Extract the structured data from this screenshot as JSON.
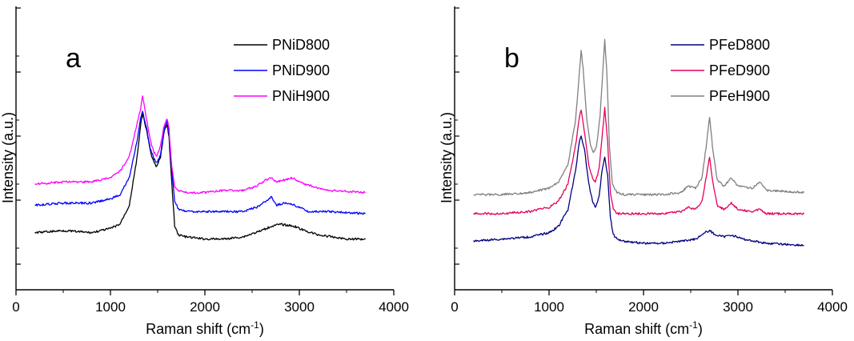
{
  "chart_data": [
    {
      "type": "line",
      "panel_label": "a",
      "xlabel": "Raman shift (cm",
      "xlabel_sup": "-1",
      "xlabel_close": ")",
      "ylabel": "Intensity (a.u.)",
      "xlim": [
        0,
        4000
      ],
      "xticks": [
        0,
        1000,
        2000,
        3000,
        4000
      ],
      "y_ticks_labeled": false,
      "grid": false,
      "legend_position": "top-right",
      "series": [
        {
          "name": "PNiD800",
          "color": "#000000",
          "points": [
            [
              200,
              0.27
            ],
            [
              500,
              0.28
            ],
            [
              800,
              0.27
            ],
            [
              1000,
              0.29
            ],
            [
              1100,
              0.31
            ],
            [
              1200,
              0.4
            ],
            [
              1280,
              0.62
            ],
            [
              1320,
              0.78
            ],
            [
              1340,
              0.83
            ],
            [
              1380,
              0.76
            ],
            [
              1420,
              0.66
            ],
            [
              1460,
              0.6
            ],
            [
              1490,
              0.58
            ],
            [
              1530,
              0.63
            ],
            [
              1570,
              0.75
            ],
            [
              1600,
              0.78
            ],
            [
              1620,
              0.72
            ],
            [
              1650,
              0.5
            ],
            [
              1680,
              0.3
            ],
            [
              1720,
              0.26
            ],
            [
              1800,
              0.25
            ],
            [
              2000,
              0.24
            ],
            [
              2200,
              0.24
            ],
            [
              2400,
              0.25
            ],
            [
              2600,
              0.28
            ],
            [
              2700,
              0.3
            ],
            [
              2800,
              0.31
            ],
            [
              2950,
              0.3
            ],
            [
              3050,
              0.28
            ],
            [
              3200,
              0.26
            ],
            [
              3500,
              0.24
            ],
            [
              3700,
              0.24
            ]
          ]
        },
        {
          "name": "PNiD900",
          "color": "#0000ff",
          "points": [
            [
              200,
              0.4
            ],
            [
              500,
              0.41
            ],
            [
              800,
              0.41
            ],
            [
              1000,
              0.43
            ],
            [
              1100,
              0.45
            ],
            [
              1200,
              0.53
            ],
            [
              1280,
              0.7
            ],
            [
              1320,
              0.81
            ],
            [
              1340,
              0.84
            ],
            [
              1380,
              0.77
            ],
            [
              1420,
              0.67
            ],
            [
              1460,
              0.62
            ],
            [
              1490,
              0.6
            ],
            [
              1530,
              0.64
            ],
            [
              1570,
              0.76
            ],
            [
              1600,
              0.8
            ],
            [
              1620,
              0.74
            ],
            [
              1650,
              0.56
            ],
            [
              1680,
              0.42
            ],
            [
              1720,
              0.38
            ],
            [
              1800,
              0.37
            ],
            [
              2000,
              0.37
            ],
            [
              2200,
              0.37
            ],
            [
              2400,
              0.37
            ],
            [
              2550,
              0.39
            ],
            [
              2650,
              0.42
            ],
            [
              2700,
              0.44
            ],
            [
              2760,
              0.4
            ],
            [
              2850,
              0.41
            ],
            [
              2950,
              0.4
            ],
            [
              3100,
              0.37
            ],
            [
              3300,
              0.37
            ],
            [
              3700,
              0.36
            ]
          ]
        },
        {
          "name": "PNiH900",
          "color": "#ff00ff",
          "points": [
            [
              200,
              0.5
            ],
            [
              500,
              0.51
            ],
            [
              800,
              0.51
            ],
            [
              1000,
              0.53
            ],
            [
              1100,
              0.56
            ],
            [
              1200,
              0.63
            ],
            [
              1280,
              0.78
            ],
            [
              1320,
              0.86
            ],
            [
              1340,
              0.92
            ],
            [
              1380,
              0.81
            ],
            [
              1420,
              0.71
            ],
            [
              1460,
              0.65
            ],
            [
              1490,
              0.63
            ],
            [
              1530,
              0.68
            ],
            [
              1570,
              0.78
            ],
            [
              1600,
              0.81
            ],
            [
              1620,
              0.76
            ],
            [
              1650,
              0.58
            ],
            [
              1680,
              0.49
            ],
            [
              1720,
              0.47
            ],
            [
              1800,
              0.46
            ],
            [
              2000,
              0.46
            ],
            [
              2200,
              0.47
            ],
            [
              2400,
              0.47
            ],
            [
              2550,
              0.49
            ],
            [
              2650,
              0.52
            ],
            [
              2700,
              0.53
            ],
            [
              2760,
              0.51
            ],
            [
              2850,
              0.52
            ],
            [
              2930,
              0.53
            ],
            [
              3050,
              0.5
            ],
            [
              3300,
              0.47
            ],
            [
              3700,
              0.46
            ]
          ]
        }
      ]
    },
    {
      "type": "line",
      "panel_label": "b",
      "xlabel": "Raman shift (cm",
      "xlabel_sup": "-1",
      "xlabel_close": ")",
      "ylabel": "Intensity (a.u.)",
      "xlim": [
        0,
        4000
      ],
      "xticks": [
        0,
        1000,
        2000,
        3000,
        4000
      ],
      "y_ticks_labeled": false,
      "grid": false,
      "legend_position": "top-right",
      "series": [
        {
          "name": "PFeD800",
          "color": "#00007f",
          "points": [
            [
              200,
              0.23
            ],
            [
              500,
              0.24
            ],
            [
              800,
              0.25
            ],
            [
              1000,
              0.27
            ],
            [
              1100,
              0.3
            ],
            [
              1200,
              0.38
            ],
            [
              1280,
              0.56
            ],
            [
              1320,
              0.7
            ],
            [
              1340,
              0.73
            ],
            [
              1380,
              0.65
            ],
            [
              1420,
              0.5
            ],
            [
              1460,
              0.42
            ],
            [
              1490,
              0.39
            ],
            [
              1530,
              0.44
            ],
            [
              1560,
              0.56
            ],
            [
              1590,
              0.63
            ],
            [
              1620,
              0.54
            ],
            [
              1650,
              0.34
            ],
            [
              1680,
              0.26
            ],
            [
              1720,
              0.24
            ],
            [
              1800,
              0.23
            ],
            [
              2000,
              0.22
            ],
            [
              2200,
              0.22
            ],
            [
              2400,
              0.23
            ],
            [
              2550,
              0.24
            ],
            [
              2650,
              0.27
            ],
            [
              2700,
              0.28
            ],
            [
              2760,
              0.26
            ],
            [
              2850,
              0.25
            ],
            [
              2930,
              0.26
            ],
            [
              3050,
              0.24
            ],
            [
              3300,
              0.22
            ],
            [
              3700,
              0.21
            ]
          ]
        },
        {
          "name": "PFeD900",
          "color": "#e6005c",
          "points": [
            [
              200,
              0.36
            ],
            [
              500,
              0.36
            ],
            [
              800,
              0.37
            ],
            [
              1000,
              0.39
            ],
            [
              1100,
              0.42
            ],
            [
              1200,
              0.5
            ],
            [
              1280,
              0.68
            ],
            [
              1320,
              0.81
            ],
            [
              1340,
              0.85
            ],
            [
              1380,
              0.73
            ],
            [
              1420,
              0.59
            ],
            [
              1460,
              0.53
            ],
            [
              1490,
              0.51
            ],
            [
              1530,
              0.57
            ],
            [
              1560,
              0.72
            ],
            [
              1590,
              0.86
            ],
            [
              1620,
              0.7
            ],
            [
              1650,
              0.46
            ],
            [
              1680,
              0.38
            ],
            [
              1720,
              0.36
            ],
            [
              1800,
              0.36
            ],
            [
              2000,
              0.36
            ],
            [
              2200,
              0.36
            ],
            [
              2400,
              0.37
            ],
            [
              2470,
              0.39
            ],
            [
              2550,
              0.38
            ],
            [
              2620,
              0.42
            ],
            [
              2670,
              0.55
            ],
            [
              2700,
              0.63
            ],
            [
              2730,
              0.52
            ],
            [
              2780,
              0.4
            ],
            [
              2850,
              0.38
            ],
            [
              2930,
              0.41
            ],
            [
              3000,
              0.38
            ],
            [
              3150,
              0.37
            ],
            [
              3240,
              0.38
            ],
            [
              3300,
              0.36
            ],
            [
              3700,
              0.36
            ]
          ]
        },
        {
          "name": "PFeH900",
          "color": "#808080",
          "points": [
            [
              200,
              0.45
            ],
            [
              500,
              0.45
            ],
            [
              800,
              0.46
            ],
            [
              1000,
              0.48
            ],
            [
              1100,
              0.51
            ],
            [
              1200,
              0.59
            ],
            [
              1280,
              0.8
            ],
            [
              1320,
              1.02
            ],
            [
              1340,
              1.13
            ],
            [
              1360,
              1.05
            ],
            [
              1400,
              0.8
            ],
            [
              1440,
              0.68
            ],
            [
              1470,
              0.65
            ],
            [
              1500,
              0.67
            ],
            [
              1540,
              0.82
            ],
            [
              1570,
              1.04
            ],
            [
              1590,
              1.18
            ],
            [
              1610,
              1.04
            ],
            [
              1640,
              0.68
            ],
            [
              1670,
              0.5
            ],
            [
              1720,
              0.46
            ],
            [
              1800,
              0.45
            ],
            [
              2000,
              0.45
            ],
            [
              2200,
              0.45
            ],
            [
              2400,
              0.46
            ],
            [
              2470,
              0.49
            ],
            [
              2550,
              0.48
            ],
            [
              2620,
              0.53
            ],
            [
              2670,
              0.7
            ],
            [
              2700,
              0.82
            ],
            [
              2730,
              0.68
            ],
            [
              2780,
              0.52
            ],
            [
              2850,
              0.49
            ],
            [
              2930,
              0.53
            ],
            [
              3000,
              0.49
            ],
            [
              3150,
              0.48
            ],
            [
              3240,
              0.51
            ],
            [
              3300,
              0.47
            ],
            [
              3700,
              0.46
            ]
          ]
        }
      ]
    }
  ]
}
